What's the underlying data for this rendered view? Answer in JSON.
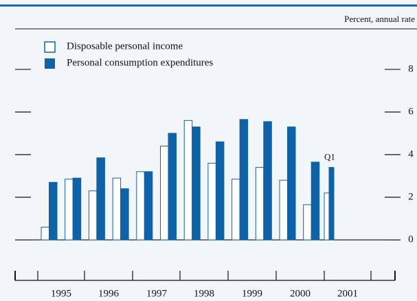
{
  "chart_data": {
    "type": "bar",
    "unit_label": "Percent, annual rate",
    "categories": [
      null,
      null,
      null,
      null,
      null,
      null,
      null,
      null,
      null,
      null,
      null,
      null,
      null
    ],
    "series": [
      {
        "name": "Disposable personal income",
        "color": "#ffffff",
        "values": [
          0.6,
          2.85,
          2.3,
          2.9,
          3.2,
          4.4,
          5.6,
          3.6,
          2.85,
          3.4,
          2.8,
          1.65,
          2.2
        ]
      },
      {
        "name": "Personal consumption expenditures",
        "color": "#0d62a8",
        "values": [
          2.7,
          2.9,
          3.85,
          2.4,
          3.2,
          5.0,
          5.3,
          4.6,
          5.65,
          5.55,
          5.3,
          3.65,
          3.4
        ]
      }
    ],
    "year_labels": [
      "1995",
      "1996",
      "1997",
      "1998",
      "1999",
      "2000",
      "2001"
    ],
    "annotation": "Q1",
    "ylim": [
      -1.9,
      9.9
    ],
    "yticks": [
      0,
      2,
      4,
      6,
      8
    ]
  }
}
